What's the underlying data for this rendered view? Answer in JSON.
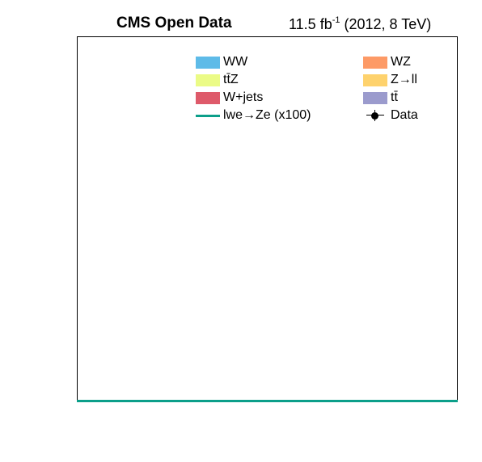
{
  "header": {
    "experiment": "CMS Open Data",
    "lumi_prefix": "11.5 fb",
    "lumi_exp": "-1",
    "lumi_suffix": " (2012, 8 TeV)"
  },
  "legend": [
    {
      "label": "WW",
      "color": "#5ebbe8",
      "kind": "fill"
    },
    {
      "label": "WZ",
      "color": "#fd9a66",
      "kind": "fill"
    },
    {
      "label": "tt̄Z",
      "color": "#ebfb86",
      "kind": "fill"
    },
    {
      "label": "Z→ll",
      "color": "#fed26d",
      "kind": "fill"
    },
    {
      "label": "W+jets",
      "color": "#de5a6a",
      "kind": "fill"
    },
    {
      "label": "tt̄",
      "color": "#9b9bcd",
      "kind": "fill"
    },
    {
      "label": "lwe→Ze (x100)",
      "color": "#0c9f8a",
      "kind": "line"
    },
    {
      "label": "Data",
      "color": "#000000",
      "kind": "marker"
    }
  ],
  "chart_data": {
    "type": "bar",
    "title": "",
    "xlabel": "",
    "ylabel": "",
    "series": [
      {
        "name": "WW",
        "values": []
      },
      {
        "name": "WZ",
        "values": []
      },
      {
        "name": "tt̄Z",
        "values": []
      },
      {
        "name": "Z→ll",
        "values": []
      },
      {
        "name": "W+jets",
        "values": []
      },
      {
        "name": "tt̄",
        "values": []
      },
      {
        "name": "lwe→Ze (x100)",
        "values": [
          0
        ]
      },
      {
        "name": "Data",
        "values": []
      }
    ],
    "legend_position": "top",
    "grid": false
  }
}
